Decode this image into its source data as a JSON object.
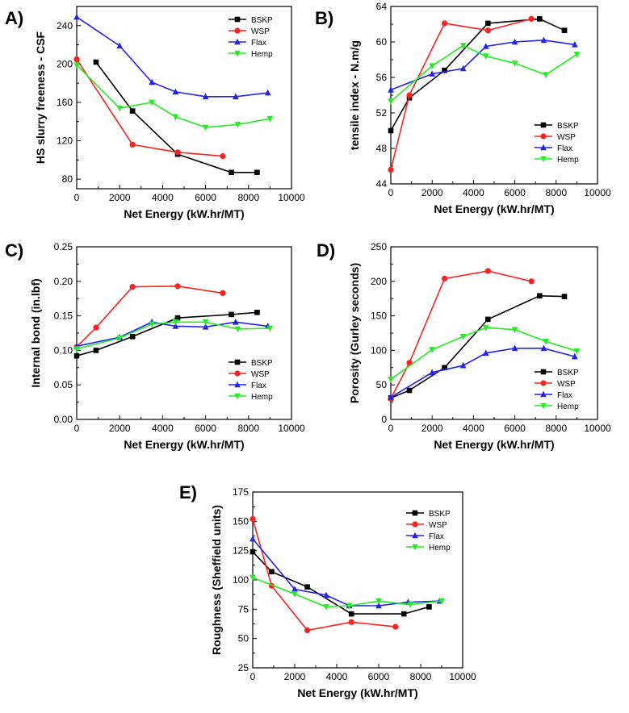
{
  "colors": {
    "BSKP": "#000000",
    "WSP": "#ff2020",
    "Flax": "#2222ee",
    "Hemp": "#22ee22"
  },
  "chart_data": [
    {
      "type": "line",
      "panel": "A)",
      "xlabel": "Net Energy (kW.hr/MT)",
      "ylabel": "HS slurry freeness - CSF",
      "xlim": [
        0,
        10000
      ],
      "ylim": [
        70,
        260
      ],
      "xticks": [
        0,
        2000,
        4000,
        6000,
        8000,
        10000
      ],
      "yticks": [
        80,
        120,
        160,
        200,
        240
      ],
      "legend": "top-right",
      "series": [
        {
          "name": "BSKP",
          "marker": "square",
          "x": [
            900,
            2600,
            4700,
            7200,
            8400
          ],
          "y": [
            202,
            151,
            106,
            87,
            87
          ]
        },
        {
          "name": "WSP",
          "marker": "circle",
          "x": [
            0,
            2600,
            4700,
            6800
          ],
          "y": [
            205,
            116,
            108,
            104
          ]
        },
        {
          "name": "Flax",
          "marker": "triangle-up",
          "x": [
            0,
            2000,
            3500,
            4600,
            6000,
            7400,
            8900
          ],
          "y": [
            249,
            219,
            181,
            171,
            166,
            166,
            170
          ]
        },
        {
          "name": "Hemp",
          "marker": "triangle-down",
          "x": [
            0,
            2000,
            3500,
            4600,
            6000,
            7500,
            9000
          ],
          "y": [
            199,
            154,
            160,
            145,
            134,
            137,
            143
          ]
        }
      ]
    },
    {
      "type": "line",
      "panel": "B)",
      "xlabel": "Net Energy (kW.hr/MT)",
      "ylabel": "tensile index - N.m/g",
      "xlim": [
        0,
        10000
      ],
      "ylim": [
        44,
        64
      ],
      "xticks": [
        0,
        2000,
        4000,
        6000,
        8000,
        10000
      ],
      "yticks": [
        44,
        48,
        52,
        56,
        60,
        64
      ],
      "legend": "bottom-right",
      "series": [
        {
          "name": "BSKP",
          "marker": "square",
          "x": [
            0,
            900,
            2600,
            4700,
            7200,
            8400
          ],
          "y": [
            50.0,
            53.7,
            56.8,
            62.1,
            62.6,
            61.3
          ]
        },
        {
          "name": "WSP",
          "marker": "circle",
          "x": [
            0,
            900,
            2600,
            4700,
            6800
          ],
          "y": [
            45.6,
            54.0,
            62.1,
            61.3,
            62.6
          ]
        },
        {
          "name": "Flax",
          "marker": "triangle-up",
          "x": [
            0,
            2000,
            3500,
            4600,
            6000,
            7400,
            8900
          ],
          "y": [
            54.6,
            56.4,
            57.0,
            59.5,
            60.0,
            60.2,
            59.7
          ]
        },
        {
          "name": "Hemp",
          "marker": "triangle-down",
          "x": [
            0,
            2000,
            3500,
            4600,
            6000,
            7500,
            9000
          ],
          "y": [
            53.3,
            57.3,
            59.6,
            58.4,
            57.6,
            56.3,
            58.6
          ]
        }
      ]
    },
    {
      "type": "line",
      "panel": "C)",
      "xlabel": "Net Energy (kW.hr/MT)",
      "ylabel": "Internal bond (in.lbf)",
      "xlim": [
        0,
        10000
      ],
      "ylim": [
        0.0,
        0.25
      ],
      "xticks": [
        0,
        2000,
        4000,
        6000,
        8000,
        10000
      ],
      "yticks": [
        "0.00",
        "0.05",
        "0.10",
        "0.15",
        "0.20",
        "0.25"
      ],
      "legend": "bottom-right",
      "series": [
        {
          "name": "BSKP",
          "marker": "square",
          "x": [
            0,
            900,
            2600,
            4700,
            7200,
            8400
          ],
          "y": [
            0.092,
            0.1,
            0.12,
            0.147,
            0.152,
            0.155
          ]
        },
        {
          "name": "WSP",
          "marker": "circle",
          "x": [
            0,
            900,
            2600,
            4700,
            6800
          ],
          "y": [
            0.105,
            0.133,
            0.192,
            0.193,
            0.183
          ]
        },
        {
          "name": "Flax",
          "marker": "triangle-up",
          "x": [
            0,
            2000,
            3500,
            4600,
            6000,
            7400,
            8900
          ],
          "y": [
            0.106,
            0.119,
            0.141,
            0.135,
            0.134,
            0.141,
            0.135
          ]
        },
        {
          "name": "Hemp",
          "marker": "triangle-down",
          "x": [
            0,
            2000,
            3500,
            4600,
            6000,
            7500,
            9000
          ],
          "y": [
            0.102,
            0.118,
            0.138,
            0.141,
            0.141,
            0.131,
            0.132
          ]
        }
      ]
    },
    {
      "type": "line",
      "panel": "D)",
      "xlabel": "Net Energy (kW.hr/MT)",
      "ylabel": "Porosity (Gurley seconds)",
      "xlim": [
        0,
        10000
      ],
      "ylim": [
        0,
        250
      ],
      "xticks": [
        0,
        2000,
        4000,
        6000,
        8000,
        10000
      ],
      "yticks": [
        0,
        50,
        100,
        150,
        200,
        250
      ],
      "legend": "bottom-right",
      "series": [
        {
          "name": "BSKP",
          "marker": "square",
          "x": [
            0,
            900,
            2600,
            4700,
            7200,
            8400
          ],
          "y": [
            31,
            42,
            75,
            145,
            179,
            178
          ]
        },
        {
          "name": "WSP",
          "marker": "circle",
          "x": [
            0,
            900,
            2600,
            4700,
            6800
          ],
          "y": [
            30,
            82,
            204,
            215,
            200
          ]
        },
        {
          "name": "Flax",
          "marker": "triangle-up",
          "x": [
            0,
            2000,
            3500,
            4600,
            6000,
            7400,
            8900
          ],
          "y": [
            32,
            68,
            78,
            96,
            103,
            103,
            91
          ]
        },
        {
          "name": "Hemp",
          "marker": "triangle-down",
          "x": [
            0,
            2000,
            3500,
            4600,
            6000,
            7500,
            9000
          ],
          "y": [
            58,
            101,
            120,
            133,
            130,
            113,
            99
          ]
        }
      ]
    },
    {
      "type": "line",
      "panel": "E)",
      "xlabel": "Net Energy (kW.hr/MT)",
      "ylabel": "Roughness (Sheffield units)",
      "xlim": [
        0,
        10000
      ],
      "ylim": [
        25,
        175
      ],
      "xticks": [
        0,
        2000,
        4000,
        6000,
        8000,
        10000
      ],
      "yticks": [
        25,
        50,
        75,
        100,
        125,
        150,
        175
      ],
      "legend": "top-right",
      "series": [
        {
          "name": "BSKP",
          "marker": "square",
          "x": [
            0,
            900,
            2600,
            4700,
            7200,
            8400
          ],
          "y": [
            124,
            107,
            94,
            71,
            71,
            77
          ]
        },
        {
          "name": "WSP",
          "marker": "circle",
          "x": [
            0,
            900,
            2600,
            4700,
            6800
          ],
          "y": [
            152,
            95,
            57,
            64,
            60
          ]
        },
        {
          "name": "Flax",
          "marker": "triangle-up",
          "x": [
            0,
            2000,
            3500,
            4600,
            6000,
            7400,
            8900
          ],
          "y": [
            135,
            92,
            87,
            78,
            78,
            81,
            82
          ]
        },
        {
          "name": "Hemp",
          "marker": "triangle-down",
          "x": [
            0,
            2000,
            3500,
            4600,
            6000,
            7500,
            9000
          ],
          "y": [
            102,
            88,
            77,
            78,
            82,
            79,
            82
          ]
        }
      ]
    }
  ]
}
